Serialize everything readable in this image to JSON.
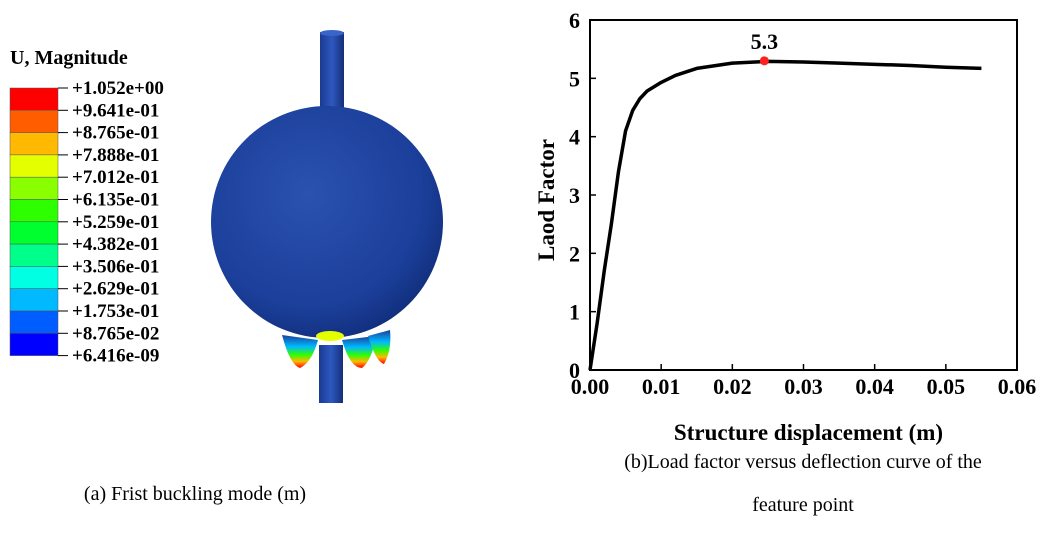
{
  "panel_a": {
    "legend": {
      "title": "U, Magnitude",
      "labels": [
        "+1.052e+00",
        "+9.641e-01",
        "+8.765e-01",
        "+7.888e-01",
        "+7.012e-01",
        "+6.135e-01",
        "+5.259e-01",
        "+4.382e-01",
        "+3.506e-01",
        "+2.629e-01",
        "+1.753e-01",
        "+8.765e-02",
        "+6.416e-09"
      ],
      "colors": [
        "#ff0000",
        "#ff5d00",
        "#ffb900",
        "#e3ff00",
        "#8aff00",
        "#2eff00",
        "#00ff2e",
        "#00ff8a",
        "#00ffe3",
        "#00b9ff",
        "#005dff",
        "#0000ff"
      ]
    },
    "caption": "(a) Frist buckling mode (m)"
  },
  "chart_data": {
    "type": "line",
    "xlabel": "Structure displacement (m)",
    "ylabel": "Laod Factor",
    "x": [
      0,
      0.001,
      0.002,
      0.003,
      0.004,
      0.005,
      0.006,
      0.007,
      0.008,
      0.01,
      0.012,
      0.015,
      0.02,
      0.025,
      0.03,
      0.035,
      0.04,
      0.045,
      0.05,
      0.055
    ],
    "series": [
      {
        "color": "#000000",
        "values": [
          0,
          0.8,
          1.7,
          2.5,
          3.4,
          4.1,
          4.45,
          4.65,
          4.78,
          4.93,
          5.05,
          5.17,
          5.26,
          5.29,
          5.28,
          5.26,
          5.24,
          5.22,
          5.19,
          5.17
        ]
      }
    ],
    "peak": {
      "x": 0.0245,
      "y": 5.3,
      "color": "#ff2020"
    },
    "xlim": [
      0,
      0.06
    ],
    "ylim": [
      0,
      6
    ],
    "xticks": [
      {
        "value": 0,
        "label": "0.00"
      },
      {
        "value": 0.01,
        "label": "0.01"
      },
      {
        "value": 0.02,
        "label": "0.02"
      },
      {
        "value": 0.03,
        "label": "0.03"
      },
      {
        "value": 0.04,
        "label": "0.04"
      },
      {
        "value": 0.05,
        "label": "0.05"
      },
      {
        "value": 0.06,
        "label": "0.06"
      }
    ],
    "yticks": [
      0,
      1,
      2,
      3,
      4,
      5,
      6
    ],
    "caption": [
      "(b)Load factor versus deflection curve of the",
      "feature point"
    ]
  }
}
